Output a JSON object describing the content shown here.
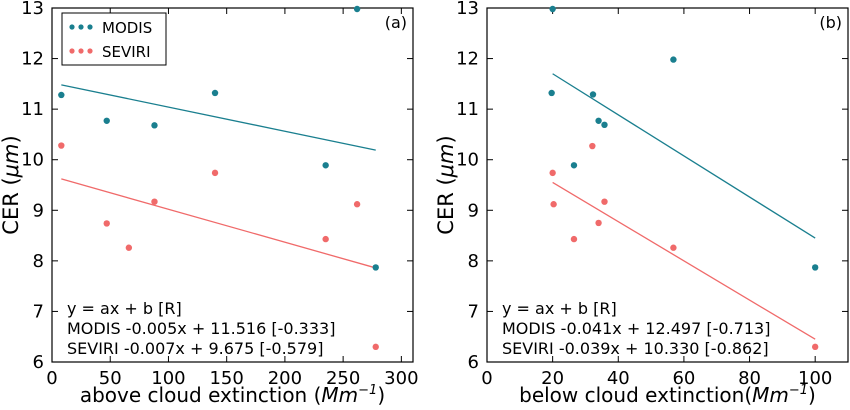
{
  "colors": {
    "modis": "#1a7f8f",
    "seviri": "#f06a6a",
    "axis": "#000000",
    "background": "#ffffff"
  },
  "chart_data": [
    {
      "type": "scatter",
      "panel_label": "(a)",
      "xlabel": "above cloud extinction (Mm⁻¹)",
      "xlabel_prefix": "above cloud extinction (",
      "xlabel_unit": "Mm",
      "xlabel_exp": "−1",
      "xlabel_suffix": ")",
      "ylabel": "CER (μm)",
      "ylabel_prefix": "CER (",
      "ylabel_unit": "μm",
      "ylabel_suffix": ")",
      "xlim": [
        0,
        310
      ],
      "ylim": [
        6,
        13
      ],
      "xticks": [
        0,
        50,
        100,
        150,
        200,
        250,
        300
      ],
      "yticks": [
        6,
        7,
        8,
        9,
        10,
        11,
        12,
        13
      ],
      "grid": false,
      "legend": {
        "position": "top-left",
        "entries": [
          "MODIS",
          "SEVIRI"
        ]
      },
      "series": [
        {
          "name": "MODIS",
          "points": [
            [
              8,
              11.28
            ],
            [
              47,
              10.77
            ],
            [
              88,
              10.68
            ],
            [
              140,
              11.32
            ],
            [
              235,
              9.89
            ],
            [
              262,
              12.98
            ],
            [
              278,
              7.87
            ]
          ],
          "fit": {
            "x": [
              8,
              278
            ],
            "y": [
              11.48,
              10.19
            ]
          }
        },
        {
          "name": "SEVIRI",
          "points": [
            [
              8,
              10.28
            ],
            [
              47,
              8.74
            ],
            [
              66,
              8.26
            ],
            [
              88,
              9.17
            ],
            [
              140,
              9.74
            ],
            [
              235,
              8.43
            ],
            [
              262,
              9.12
            ],
            [
              278,
              6.3
            ]
          ],
          "fit": {
            "x": [
              8,
              278
            ],
            "y": [
              9.62,
              7.86
            ]
          }
        }
      ],
      "annotation": {
        "header": "y = ax + b [R]",
        "modis": "MODIS -0.005x + 11.516 [-0.333]",
        "seviri": "SEVIRI  -0.007x +  9.675 [-0.579]"
      }
    },
    {
      "type": "scatter",
      "panel_label": "(b)",
      "xlabel": "below cloud extinction(Mm⁻¹)",
      "xlabel_prefix": "below cloud extinction(",
      "xlabel_unit": "Mm",
      "xlabel_exp": "−1",
      "xlabel_suffix": ")",
      "ylabel": "CER (μm)",
      "ylabel_prefix": "CER (",
      "ylabel_unit": "μm",
      "ylabel_suffix": ")",
      "xlim": [
        0,
        110
      ],
      "ylim": [
        6,
        13
      ],
      "xticks": [
        0,
        20,
        40,
        60,
        80,
        100
      ],
      "yticks": [
        6,
        7,
        8,
        9,
        10,
        11,
        12,
        13
      ],
      "grid": false,
      "legend": null,
      "series": [
        {
          "name": "MODIS",
          "points": [
            [
              20,
              12.98
            ],
            [
              19.7,
              11.32
            ],
            [
              32.3,
              11.29
            ],
            [
              34,
              10.77
            ],
            [
              35.8,
              10.69
            ],
            [
              26.5,
              9.89
            ],
            [
              56.8,
              11.98
            ],
            [
              100,
              7.87
            ]
          ],
          "fit": {
            "x": [
              20,
              100
            ],
            "y": [
              11.7,
              8.45
            ]
          }
        },
        {
          "name": "SEVIRI",
          "points": [
            [
              32.1,
              10.27
            ],
            [
              20,
              9.74
            ],
            [
              20.3,
              9.12
            ],
            [
              35.8,
              9.17
            ],
            [
              26.5,
              8.43
            ],
            [
              34,
              8.75
            ],
            [
              56.8,
              8.26
            ],
            [
              100,
              6.3
            ]
          ],
          "fit": {
            "x": [
              20,
              100
            ],
            "y": [
              9.55,
              6.45
            ]
          }
        }
      ],
      "annotation": {
        "header": "y = ax + b [R]",
        "modis": "MODIS -0.041x + 12.497 [-0.713]",
        "seviri": "SEVIRI  -0.039x +  10.330 [-0.862]"
      }
    }
  ]
}
